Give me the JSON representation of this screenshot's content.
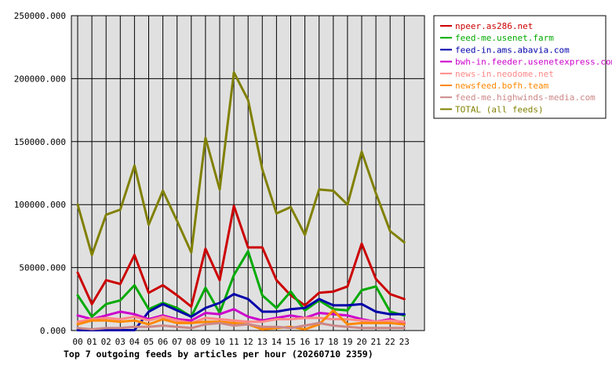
{
  "chart_data": {
    "type": "line",
    "title": "Top 7 outgoing feeds by articles per hour (20260710 2359)",
    "xlabel": "",
    "ylabel": "",
    "ylim": [
      0,
      250000
    ],
    "y_ticks": [
      "0.000",
      "50000.000",
      "100000.000",
      "150000.000",
      "200000.000",
      "250000.000"
    ],
    "y_tick_values": [
      0,
      50000,
      100000,
      150000,
      200000,
      250000
    ],
    "grid": true,
    "legend_position": "top-right",
    "categories": [
      "00",
      "01",
      "02",
      "03",
      "04",
      "05",
      "06",
      "07",
      "08",
      "09",
      "10",
      "11",
      "12",
      "13",
      "14",
      "15",
      "16",
      "17",
      "18",
      "19",
      "20",
      "21",
      "22",
      "23"
    ],
    "series": [
      {
        "name": "npeer.as286.net",
        "color": "#cc0000",
        "values": [
          46000,
          21000,
          40000,
          37000,
          60000,
          30000,
          36000,
          28000,
          19000,
          65000,
          40000,
          99000,
          66000,
          66000,
          40000,
          28000,
          20000,
          30000,
          31000,
          35000,
          69000,
          41000,
          29000,
          25000
        ]
      },
      {
        "name": "feed-me.usenet.farm",
        "color": "#00aa00",
        "values": [
          28000,
          11000,
          21000,
          24000,
          36000,
          17000,
          22000,
          18000,
          11000,
          34000,
          14000,
          44000,
          63000,
          28000,
          18000,
          31000,
          16000,
          24000,
          17000,
          16000,
          32000,
          35000,
          15000,
          12000
        ]
      },
      {
        "name": "feed-in.ams.abavia.com",
        "color": "#0000aa",
        "values": [
          300,
          300,
          300,
          300,
          300,
          15000,
          21000,
          16000,
          11000,
          18000,
          22000,
          29000,
          25000,
          15000,
          15000,
          17000,
          18000,
          25000,
          20000,
          20000,
          21000,
          15000,
          13000,
          13000
        ]
      },
      {
        "name": "bwh-in.feeder.usenetexpress.com",
        "color": "#cc00cc",
        "values": [
          12000,
          9000,
          12000,
          15000,
          13000,
          9000,
          12000,
          9000,
          8000,
          14000,
          13000,
          17000,
          11000,
          8000,
          10000,
          12000,
          10000,
          14000,
          13000,
          12000,
          9000,
          7000,
          9000,
          6000
        ]
      },
      {
        "name": "news-in.neodome.net",
        "color": "#ff8888",
        "values": [
          7000,
          9000,
          10000,
          9000,
          11000,
          8000,
          11000,
          8000,
          6000,
          10000,
          9000,
          8000,
          7000,
          7000,
          9000,
          9000,
          10000,
          10000,
          9000,
          9000,
          8000,
          7000,
          8000,
          7000
        ]
      },
      {
        "name": "newsfeed.bofh.team",
        "color": "#ff8800",
        "values": [
          5000,
          8000,
          8000,
          7000,
          8000,
          5000,
          9000,
          6000,
          6000,
          7000,
          7000,
          6000,
          5000,
          1000,
          2000,
          3000,
          1000,
          5000,
          16000,
          5000,
          6000,
          6000,
          6000,
          5000
        ]
      },
      {
        "name": "feed-me.highwinds-media.com",
        "color": "#cc8888",
        "values": [
          2000,
          1000,
          2000,
          2000,
          3000,
          3000,
          4000,
          3000,
          2000,
          5000,
          6000,
          4000,
          5000,
          3000,
          3000,
          2000,
          4000,
          6000,
          4000,
          3000,
          2000,
          2000,
          2000,
          2000
        ]
      },
      {
        "name": "TOTAL (all feeds)",
        "color": "#808000",
        "values": [
          100000,
          60000,
          92000,
          96000,
          131000,
          84000,
          111000,
          87000,
          62000,
          153000,
          112000,
          205000,
          183000,
          128000,
          93000,
          98000,
          76000,
          112000,
          111000,
          100000,
          142000,
          109000,
          79000,
          70000
        ]
      }
    ]
  }
}
